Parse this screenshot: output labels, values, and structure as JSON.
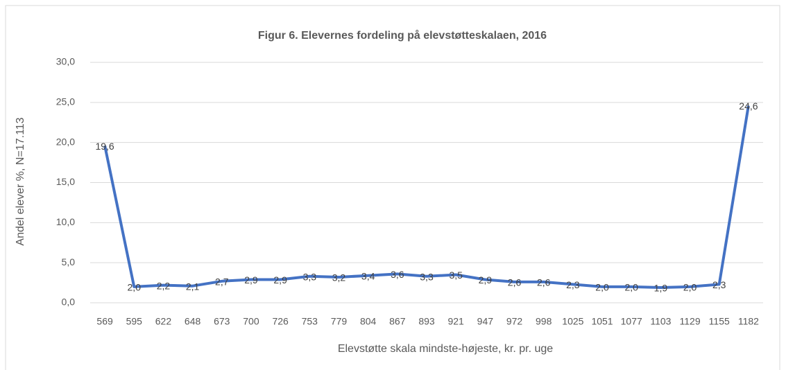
{
  "chart_data": {
    "type": "line",
    "title": "Figur 6. Elevernes fordeling på elevstøtteskalaen, 2016",
    "x_label": "Elevstøtte skala mindste-højeste, kr. pr. uge",
    "y_label": "Andel elever %, N=17.113",
    "categories": [
      "569",
      "595",
      "622",
      "648",
      "673",
      "700",
      "726",
      "753",
      "779",
      "804",
      "867",
      "893",
      "921",
      "947",
      "972",
      "998",
      "1025",
      "1051",
      "1077",
      "1103",
      "1129",
      "1155",
      "1182"
    ],
    "series": [
      {
        "name": "Andel elever",
        "color": "#4472c4",
        "values": [
          19.6,
          2.0,
          2.2,
          2.1,
          2.7,
          2.9,
          2.9,
          3.3,
          3.2,
          3.4,
          3.6,
          3.3,
          3.5,
          2.9,
          2.6,
          2.6,
          2.3,
          2.0,
          2.0,
          1.9,
          2.0,
          2.3,
          24.6
        ],
        "value_labels": [
          "19,6",
          "2,0",
          "2,2",
          "2,1",
          "2,7",
          "2,9",
          "2,9",
          "3,3",
          "3,2",
          "3,4",
          "3,6",
          "3,3",
          "3,5",
          "2,9",
          "2,6",
          "2,6",
          "2,3",
          "2,0",
          "2,0",
          "1,9",
          "2,0",
          "2,3",
          "24,6"
        ]
      }
    ],
    "ylim": [
      0,
      30
    ],
    "yticks": [
      {
        "value": 0,
        "label": "0,0"
      },
      {
        "value": 5,
        "label": "5,0"
      },
      {
        "value": 10,
        "label": "10,0"
      },
      {
        "value": 15,
        "label": "15,0"
      },
      {
        "value": 20,
        "label": "20,0"
      },
      {
        "value": 25,
        "label": "25,0"
      },
      {
        "value": 30,
        "label": "30,0"
      }
    ],
    "grid": true
  }
}
